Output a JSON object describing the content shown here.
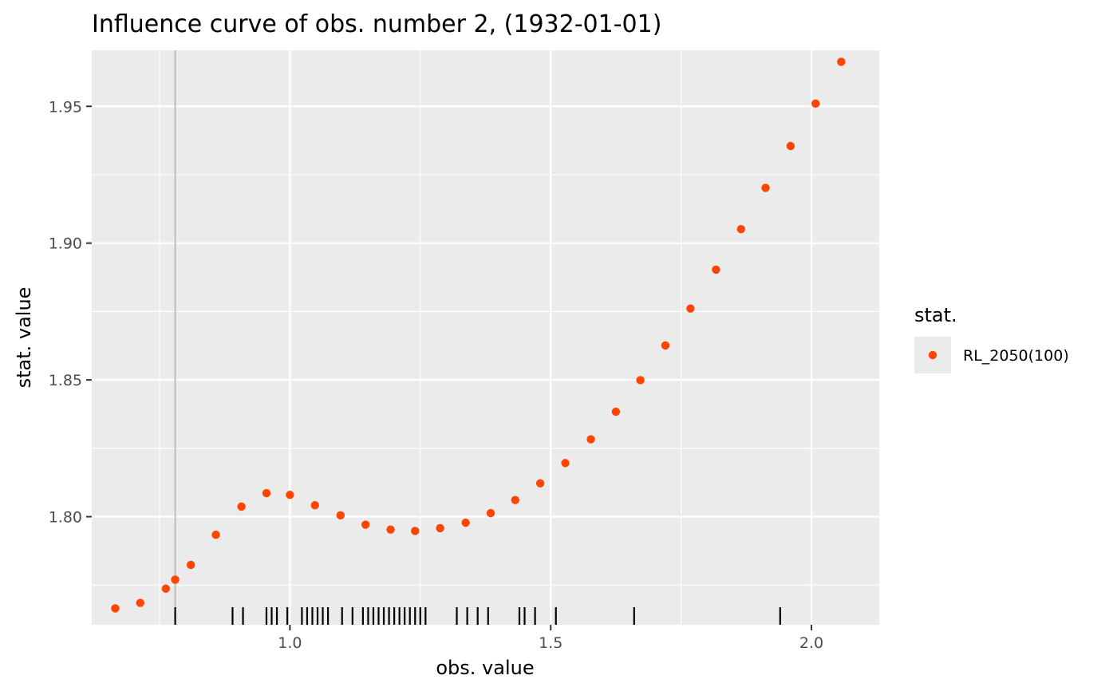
{
  "chart_data": {
    "type": "scatter",
    "title": "Influence curve of obs. number 2, (1932-01-01)",
    "xlabel": "obs. value",
    "ylabel": "stat. value",
    "xlim": [
      0.62,
      2.13
    ],
    "ylim": [
      1.7605,
      1.9705
    ],
    "x_ticks": [
      1.0,
      1.5,
      2.0
    ],
    "x_tick_labels": [
      "1.0",
      "1.5",
      "2.0"
    ],
    "y_ticks": [
      1.8,
      1.85,
      1.9,
      1.95
    ],
    "y_tick_labels": [
      "1.80",
      "1.85",
      "1.90",
      "1.95"
    ],
    "grid": true,
    "panel_background": "#ebebeb",
    "point_color": "#ff4500",
    "reference_line_x": 0.78,
    "reference_line_color": "#bebebe",
    "legend": {
      "title": "stat.",
      "position": "right",
      "entries": [
        "RL_2050(100)"
      ]
    },
    "series": [
      {
        "name": "RL_2050(100)",
        "x": [
          0.665,
          0.713,
          0.762,
          0.78,
          0.81,
          0.858,
          0.907,
          0.955,
          1.0,
          1.048,
          1.097,
          1.145,
          1.193,
          1.24,
          1.288,
          1.337,
          1.385,
          1.432,
          1.48,
          1.528,
          1.577,
          1.625,
          1.672,
          1.72,
          1.768,
          1.817,
          1.865,
          1.912,
          1.96,
          2.008,
          2.057
        ],
        "y": [
          1.7665,
          1.7685,
          1.7737,
          1.777,
          1.7824,
          1.7934,
          1.8037,
          1.8086,
          1.808,
          1.8042,
          1.8005,
          1.7971,
          1.7953,
          1.7948,
          1.7958,
          1.7978,
          1.8013,
          1.8061,
          1.8122,
          1.8196,
          1.8283,
          1.8384,
          1.8499,
          1.8626,
          1.8761,
          1.8903,
          1.9051,
          1.9202,
          1.9355,
          1.951,
          1.9663
        ]
      }
    ],
    "rug_x": [
      0.78,
      0.89,
      0.91,
      0.955,
      0.965,
      0.975,
      0.995,
      1.023,
      1.033,
      1.043,
      1.053,
      1.063,
      1.073,
      1.1,
      1.12,
      1.14,
      1.15,
      1.16,
      1.17,
      1.18,
      1.19,
      1.2,
      1.21,
      1.22,
      1.23,
      1.24,
      1.25,
      1.26,
      1.32,
      1.34,
      1.36,
      1.38,
      1.44,
      1.45,
      1.47,
      1.51,
      1.66,
      1.94
    ]
  }
}
